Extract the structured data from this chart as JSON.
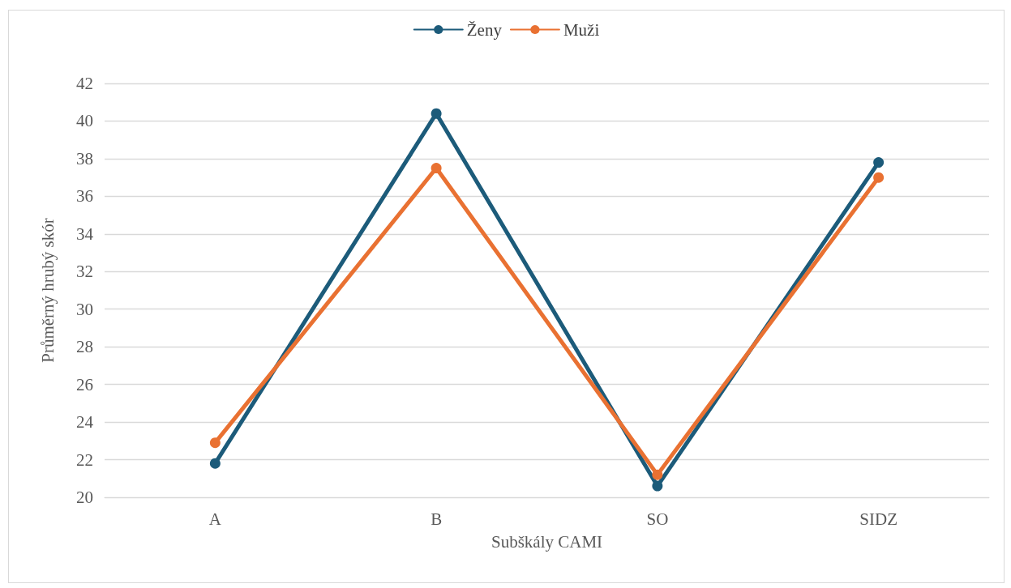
{
  "chart_data": {
    "type": "line",
    "xlabel": "Subškály CAMI",
    "ylabel": "Průměrný hrubý skór",
    "categories": [
      "A",
      "B",
      "SO",
      "SIDZ"
    ],
    "series": [
      {
        "name": "Ženy",
        "color": "#1c5b7a",
        "values": [
          21.8,
          40.4,
          20.6,
          37.8
        ]
      },
      {
        "name": "Muži",
        "color": "#e97132",
        "values": [
          22.9,
          37.5,
          21.2,
          37.0
        ]
      }
    ],
    "ylim": [
      20,
      42
    ],
    "yticks": [
      20,
      22,
      24,
      26,
      28,
      30,
      32,
      34,
      36,
      38,
      40,
      42
    ],
    "grid": "y",
    "legend": "top",
    "marker": "circle",
    "line_style": "solid"
  }
}
